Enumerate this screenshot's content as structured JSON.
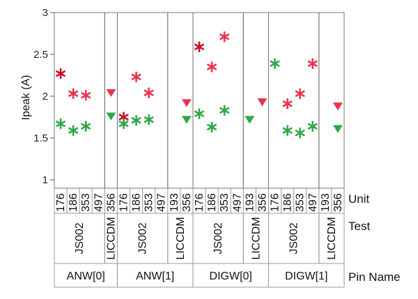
{
  "chart_data": {
    "type": "scatter",
    "ylabel": "Ipeak (A)",
    "ylim": [
      0.9,
      3.0
    ],
    "yticks": [
      1,
      1.5,
      2,
      2.5,
      3
    ],
    "ytick_labels": [
      "1",
      "1.5",
      "2",
      "2.5",
      "3"
    ],
    "x_levels": [
      "Unit",
      "Test",
      "Pin Name"
    ],
    "row_labels": {
      "unit": "Unit",
      "test": "Test",
      "pin": "Pin Name"
    },
    "colors": {
      "red": "#e8344e",
      "darkred": "#c8102e",
      "green": "#2ea84a"
    },
    "pins": [
      {
        "name": "ANW[0]",
        "tests": [
          {
            "name": "JS002",
            "units": [
              {
                "unit": "176",
                "points": [
                  {
                    "y": 2.27,
                    "marker": "star",
                    "color": "darkred"
                  },
                  {
                    "y": 1.67,
                    "marker": "star",
                    "color": "green"
                  }
                ]
              },
              {
                "unit": "186",
                "points": [
                  {
                    "y": 2.03,
                    "marker": "star",
                    "color": "red"
                  },
                  {
                    "y": 1.59,
                    "marker": "star",
                    "color": "green"
                  }
                ]
              },
              {
                "unit": "353",
                "points": [
                  {
                    "y": 2.01,
                    "marker": "star",
                    "color": "red"
                  },
                  {
                    "y": 1.64,
                    "marker": "star",
                    "color": "green"
                  }
                ]
              },
              {
                "unit": "497",
                "points": []
              }
            ]
          },
          {
            "name": "LICCDM",
            "units": [
              {
                "unit": "356",
                "points": [
                  {
                    "y": 2.04,
                    "marker": "triangle",
                    "color": "red"
                  },
                  {
                    "y": 1.76,
                    "marker": "triangle",
                    "color": "green"
                  }
                ]
              }
            ]
          }
        ]
      },
      {
        "name": "ANW[1]",
        "tests": [
          {
            "name": "JS002",
            "units": [
              {
                "unit": "176",
                "points": [
                  {
                    "y": 1.75,
                    "marker": "star",
                    "color": "darkred"
                  },
                  {
                    "y": 1.67,
                    "marker": "star",
                    "color": "green"
                  }
                ]
              },
              {
                "unit": "186",
                "points": [
                  {
                    "y": 2.23,
                    "marker": "star",
                    "color": "red"
                  },
                  {
                    "y": 1.71,
                    "marker": "star",
                    "color": "green"
                  }
                ]
              },
              {
                "unit": "353",
                "points": [
                  {
                    "y": 2.04,
                    "marker": "star",
                    "color": "red"
                  },
                  {
                    "y": 1.72,
                    "marker": "star",
                    "color": "green"
                  }
                ]
              },
              {
                "unit": "497",
                "points": []
              }
            ]
          },
          {
            "name": "LICCDM",
            "units": [
              {
                "unit": "193",
                "points": []
              },
              {
                "unit": "356",
                "points": [
                  {
                    "y": 1.92,
                    "marker": "triangle",
                    "color": "red"
                  },
                  {
                    "y": 1.72,
                    "marker": "triangle",
                    "color": "green"
                  }
                ]
              }
            ]
          }
        ]
      },
      {
        "name": "DIGW[0]",
        "tests": [
          {
            "name": "JS002",
            "units": [
              {
                "unit": "176",
                "points": [
                  {
                    "y": 2.59,
                    "marker": "star",
                    "color": "darkred"
                  },
                  {
                    "y": 1.79,
                    "marker": "star",
                    "color": "green"
                  }
                ]
              },
              {
                "unit": "186",
                "points": [
                  {
                    "y": 2.35,
                    "marker": "star",
                    "color": "red"
                  },
                  {
                    "y": 1.63,
                    "marker": "star",
                    "color": "green"
                  }
                ]
              },
              {
                "unit": "353",
                "points": [
                  {
                    "y": 2.71,
                    "marker": "star",
                    "color": "red"
                  },
                  {
                    "y": 1.83,
                    "marker": "star",
                    "color": "green"
                  }
                ]
              },
              {
                "unit": "497",
                "points": []
              }
            ]
          },
          {
            "name": "LICCDM",
            "units": [
              {
                "unit": "193",
                "points": [
                  {
                    "y": 1.72,
                    "marker": "triangle",
                    "color": "green"
                  }
                ]
              },
              {
                "unit": "356",
                "points": [
                  {
                    "y": 1.93,
                    "marker": "triangle",
                    "color": "red"
                  }
                ]
              }
            ]
          }
        ]
      },
      {
        "name": "DIGW[1]",
        "tests": [
          {
            "name": "JS002",
            "units": [
              {
                "unit": "176",
                "points": [
                  {
                    "y": 2.39,
                    "marker": "star",
                    "color": "green"
                  }
                ]
              },
              {
                "unit": "186",
                "points": [
                  {
                    "y": 1.91,
                    "marker": "star",
                    "color": "red"
                  },
                  {
                    "y": 1.59,
                    "marker": "star",
                    "color": "green"
                  }
                ]
              },
              {
                "unit": "353",
                "points": [
                  {
                    "y": 2.03,
                    "marker": "star",
                    "color": "red"
                  },
                  {
                    "y": 1.56,
                    "marker": "star",
                    "color": "green"
                  }
                ]
              },
              {
                "unit": "497",
                "points": [
                  {
                    "y": 2.39,
                    "marker": "star",
                    "color": "red"
                  },
                  {
                    "y": 1.64,
                    "marker": "star",
                    "color": "green"
                  }
                ]
              }
            ]
          },
          {
            "name": "LICCDM",
            "units": [
              {
                "unit": "193",
                "points": []
              },
              {
                "unit": "356",
                "points": [
                  {
                    "y": 1.88,
                    "marker": "triangle",
                    "color": "red"
                  },
                  {
                    "y": 1.61,
                    "marker": "triangle",
                    "color": "green"
                  }
                ]
              }
            ]
          }
        ]
      }
    ]
  }
}
